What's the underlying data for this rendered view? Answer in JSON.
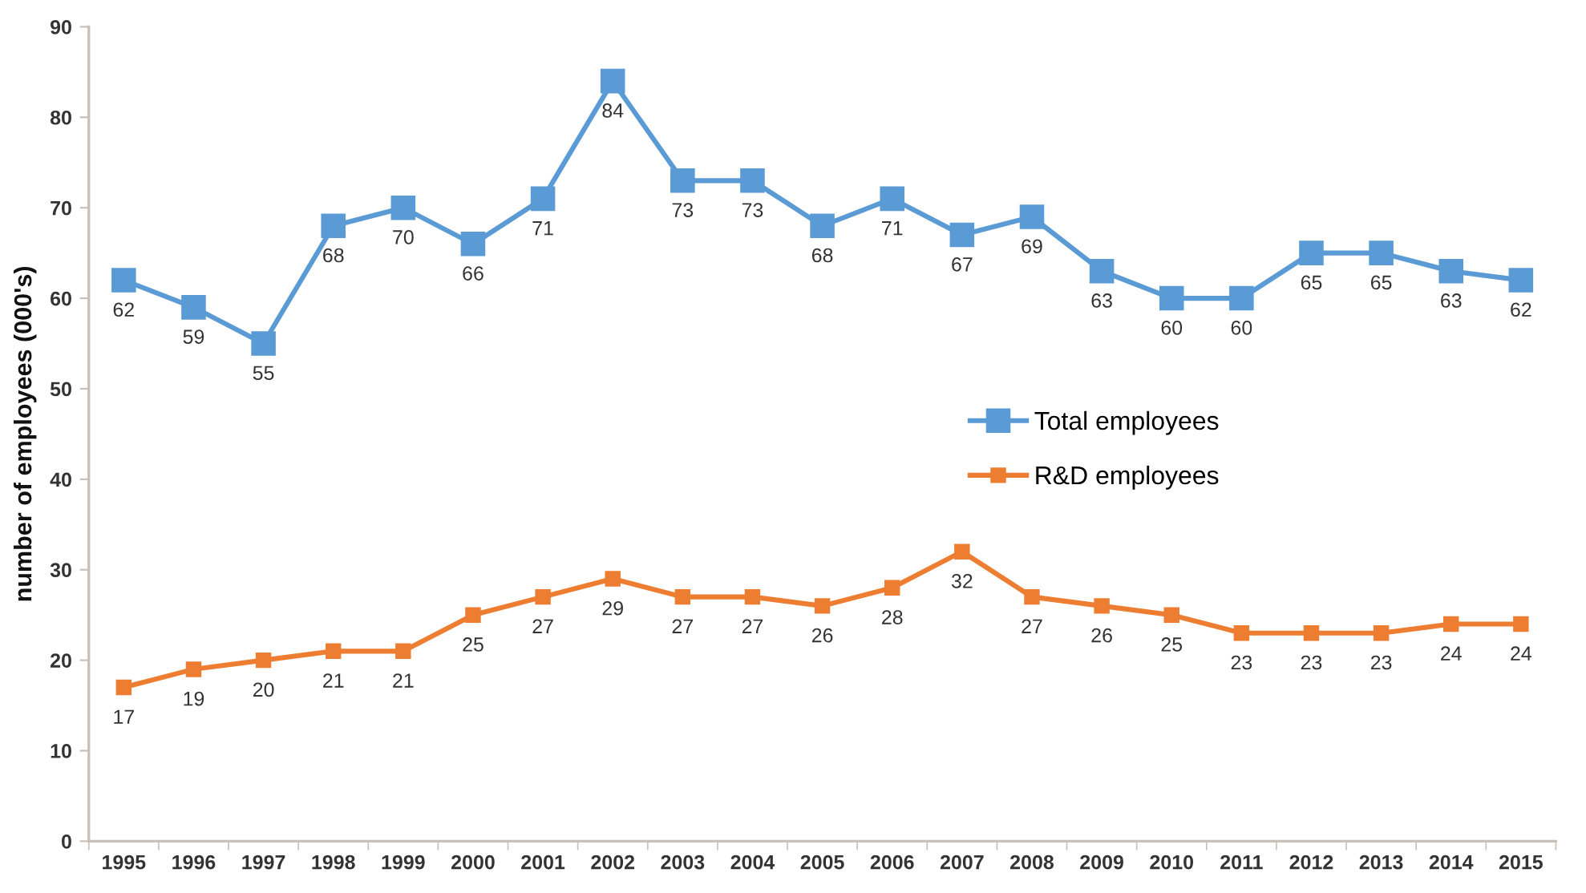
{
  "chart_data": {
    "type": "line",
    "ylabel": "number of employees (000's)",
    "categories": [
      "1995",
      "1996",
      "1997",
      "1998",
      "1999",
      "2000",
      "2001",
      "2002",
      "2003",
      "2004",
      "2005",
      "2006",
      "2007",
      "2008",
      "2009",
      "2010",
      "2011",
      "2012",
      "2013",
      "2014",
      "2015"
    ],
    "series": [
      {
        "name": "Total employees",
        "color": "#5b9bd5",
        "values": [
          62,
          59,
          55,
          68,
          70,
          66,
          71,
          84,
          73,
          73,
          68,
          71,
          67,
          69,
          63,
          60,
          60,
          65,
          65,
          63,
          62
        ]
      },
      {
        "name": "R&D employees",
        "color": "#ed7d31",
        "values": [
          17,
          19,
          20,
          21,
          21,
          25,
          27,
          29,
          27,
          27,
          26,
          28,
          32,
          27,
          26,
          25,
          23,
          23,
          23,
          24,
          24
        ]
      }
    ],
    "ylim": [
      0,
      90
    ],
    "yticks": [
      0,
      10,
      20,
      30,
      40,
      50,
      60,
      70,
      80,
      90
    ],
    "data_labels": true,
    "grid": false,
    "legend": "center right",
    "marker": "square",
    "line_style": "solid"
  }
}
